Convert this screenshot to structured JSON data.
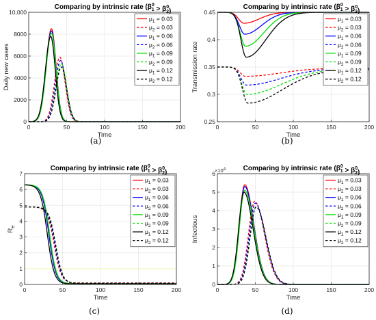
{
  "colors": {
    "red": "#ff0000",
    "blue": "#0000ff",
    "green": "#00dd00",
    "black": "#000000",
    "grid": "#e6e6e6",
    "refline": "#f5f5b0"
  },
  "legend_entries": [
    {
      "label": "μ1 = 0.03",
      "color": "red",
      "dash": false
    },
    {
      "label": "μ2 = 0.03",
      "color": "red",
      "dash": true
    },
    {
      "label": "μ1 = 0.06",
      "color": "blue",
      "dash": false
    },
    {
      "label": "μ2 = 0.06",
      "color": "blue",
      "dash": true
    },
    {
      "label": "μ1 = 0.09",
      "color": "green",
      "dash": false
    },
    {
      "label": "μ2 = 0.09",
      "color": "green",
      "dash": true
    },
    {
      "label": "μ1 = 0.12",
      "color": "black",
      "dash": false
    },
    {
      "label": "μ2 = 0.12",
      "color": "black",
      "dash": true
    }
  ],
  "chart_data": [
    {
      "id": "a",
      "caption": "(a)",
      "type": "line",
      "title": "Comparing by intrinsic rate (β1^0 > β2^0)",
      "xlabel": "Time",
      "ylabel": "Daily new cases",
      "xlim": [
        0,
        200
      ],
      "ylim": [
        0,
        10000
      ],
      "xticks": [
        "0",
        "50",
        "100",
        "150",
        "200"
      ],
      "yticks": [
        "0",
        "2000",
        "4000",
        "6000",
        "8000",
        "10,000"
      ],
      "exponent": "",
      "grid": true,
      "legend": "top-right",
      "series": [
        {
          "name": "μ1 = 0.03",
          "color": "red",
          "dash": false,
          "peak_x": 30,
          "peak_y": 8500,
          "start_y": 0,
          "end_y": 0,
          "rise": 7,
          "fall": 6
        },
        {
          "name": "μ2 = 0.03",
          "color": "red",
          "dash": true,
          "peak_x": 41,
          "peak_y": 5900,
          "start_y": 0,
          "end_y": 0,
          "rise": 7,
          "fall": 7
        },
        {
          "name": "μ1 = 0.06",
          "color": "blue",
          "dash": false,
          "peak_x": 30,
          "peak_y": 8300,
          "start_y": 0,
          "end_y": 0,
          "rise": 7,
          "fall": 6
        },
        {
          "name": "μ2 = 0.06",
          "color": "blue",
          "dash": true,
          "peak_x": 42,
          "peak_y": 5600,
          "start_y": 0,
          "end_y": 0,
          "rise": 7,
          "fall": 7
        },
        {
          "name": "μ1 = 0.09",
          "color": "green",
          "dash": false,
          "peak_x": 30,
          "peak_y": 8100,
          "start_y": 0,
          "end_y": 0,
          "rise": 7,
          "fall": 6
        },
        {
          "name": "μ2 = 0.09",
          "color": "green",
          "dash": true,
          "peak_x": 43,
          "peak_y": 5300,
          "start_y": 0,
          "end_y": 0,
          "rise": 7,
          "fall": 7
        },
        {
          "name": "μ1 = 0.12",
          "color": "black",
          "dash": false,
          "peak_x": 29,
          "peak_y": 7800,
          "start_y": 0,
          "end_y": 0,
          "rise": 7,
          "fall": 6
        },
        {
          "name": "μ2 = 0.12",
          "color": "black",
          "dash": true,
          "peak_x": 43,
          "peak_y": 5000,
          "start_y": 0,
          "end_y": 0,
          "rise": 7,
          "fall": 7
        }
      ]
    },
    {
      "id": "b",
      "caption": "(b)",
      "type": "line",
      "title": "Comparing by intrinsic rate (β1^0 > β2^0)",
      "xlabel": "Time",
      "ylabel": "Transmission rate",
      "xlim": [
        0,
        200
      ],
      "ylim": [
        0.25,
        0.45
      ],
      "xticks": [
        "0",
        "50",
        "100",
        "150",
        "200"
      ],
      "yticks": [
        "0.25",
        "0.3",
        "0.35",
        "0.4",
        "0.45"
      ],
      "exponent": "",
      "grid": true,
      "legend": "top-right",
      "series": [
        {
          "name": "μ1 = 0.03",
          "color": "red",
          "dash": false,
          "peak_x": 35,
          "peak_y": 0.43,
          "start_y": 0.45,
          "end_y": 0.45,
          "rise": 7,
          "fall": 20
        },
        {
          "name": "μ2 = 0.03",
          "color": "red",
          "dash": true,
          "peak_x": 37,
          "peak_y": 0.333,
          "start_y": 0.35,
          "end_y": 0.348,
          "rise": 7,
          "fall": 45
        },
        {
          "name": "μ1 = 0.06",
          "color": "blue",
          "dash": false,
          "peak_x": 36,
          "peak_y": 0.41,
          "start_y": 0.45,
          "end_y": 0.45,
          "rise": 7,
          "fall": 22
        },
        {
          "name": "μ2 = 0.06",
          "color": "blue",
          "dash": true,
          "peak_x": 38,
          "peak_y": 0.317,
          "start_y": 0.35,
          "end_y": 0.347,
          "rise": 7,
          "fall": 45
        },
        {
          "name": "μ1 = 0.09",
          "color": "green",
          "dash": false,
          "peak_x": 37,
          "peak_y": 0.388,
          "start_y": 0.45,
          "end_y": 0.45,
          "rise": 7,
          "fall": 24
        },
        {
          "name": "μ2 = 0.09",
          "color": "green",
          "dash": true,
          "peak_x": 39,
          "peak_y": 0.3,
          "start_y": 0.35,
          "end_y": 0.346,
          "rise": 7,
          "fall": 45
        },
        {
          "name": "μ1 = 0.12",
          "color": "black",
          "dash": false,
          "peak_x": 38,
          "peak_y": 0.368,
          "start_y": 0.45,
          "end_y": 0.45,
          "rise": 7,
          "fall": 26
        },
        {
          "name": "μ2 = 0.12",
          "color": "black",
          "dash": true,
          "peak_x": 40,
          "peak_y": 0.284,
          "start_y": 0.35,
          "end_y": 0.345,
          "rise": 7,
          "fall": 45
        }
      ]
    },
    {
      "id": "c",
      "caption": "(c)",
      "type": "line",
      "title": "Comparing by intrinsic rate (β1^0 > β2^0)",
      "xlabel": "Time",
      "ylabel": "Re",
      "xlim": [
        0,
        200
      ],
      "ylim": [
        0,
        7
      ],
      "xticks": [
        "0",
        "50",
        "100",
        "150",
        "200"
      ],
      "yticks": [
        "0",
        "1",
        "2",
        "3",
        "4",
        "5",
        "6",
        "7"
      ],
      "exponent": "",
      "grid": true,
      "legend": "top-right",
      "series": [
        {
          "name": "μ1 = 0.03",
          "color": "red",
          "dash": false,
          "start_y": 6.3,
          "end_y": 0.05,
          "mid_x": 32,
          "width": 4.5
        },
        {
          "name": "μ2 = 0.03",
          "color": "red",
          "dash": true,
          "start_y": 4.9,
          "end_y": 0.1,
          "mid_x": 39,
          "width": 4.5
        },
        {
          "name": "μ1 = 0.06",
          "color": "blue",
          "dash": false,
          "start_y": 6.3,
          "end_y": 0.04,
          "mid_x": 32,
          "width": 4.5
        },
        {
          "name": "μ2 = 0.06",
          "color": "blue",
          "dash": true,
          "start_y": 4.9,
          "end_y": 0.08,
          "mid_x": 40,
          "width": 4.5
        },
        {
          "name": "μ1 = 0.09",
          "color": "green",
          "dash": false,
          "start_y": 6.3,
          "end_y": 0.04,
          "mid_x": 33,
          "width": 4.5
        },
        {
          "name": "μ2 = 0.09",
          "color": "green",
          "dash": true,
          "start_y": 4.9,
          "end_y": 0.07,
          "mid_x": 41,
          "width": 4.5
        },
        {
          "name": "μ1 = 0.12",
          "color": "black",
          "dash": false,
          "start_y": 6.3,
          "end_y": 0.03,
          "mid_x": 30,
          "width": 4.5
        },
        {
          "name": "μ2 = 0.12",
          "color": "black",
          "dash": true,
          "start_y": 4.9,
          "end_y": 0.06,
          "mid_x": 41,
          "width": 4.5
        }
      ]
    },
    {
      "id": "d",
      "caption": "(d)",
      "type": "line",
      "title": "Comparing by intrinsic rate (β1^0 > β2^0)",
      "xlabel": "Time",
      "ylabel": "Infectious",
      "xlim": [
        0,
        200
      ],
      "ylim": [
        0,
        6
      ],
      "xticks": [
        "0",
        "50",
        "100",
        "150",
        "200"
      ],
      "yticks": [
        "0",
        "1",
        "2",
        "3",
        "4",
        "5",
        "6"
      ],
      "exponent": "×10^4",
      "grid": true,
      "legend": "top-right",
      "series": [
        {
          "name": "μ1 = 0.03",
          "color": "red",
          "dash": false,
          "peak_x": 36,
          "peak_y": 5.4,
          "start_y": 0,
          "end_y": 0,
          "rise": 7,
          "fall": 12
        },
        {
          "name": "μ2 = 0.03",
          "color": "red",
          "dash": true,
          "peak_x": 49,
          "peak_y": 4.5,
          "start_y": 0,
          "end_y": 0,
          "rise": 8,
          "fall": 13
        },
        {
          "name": "μ1 = 0.06",
          "color": "blue",
          "dash": false,
          "peak_x": 36,
          "peak_y": 5.3,
          "start_y": 0,
          "end_y": 0,
          "rise": 7,
          "fall": 12
        },
        {
          "name": "μ2 = 0.06",
          "color": "blue",
          "dash": true,
          "peak_x": 50,
          "peak_y": 4.4,
          "start_y": 0,
          "end_y": 0,
          "rise": 8,
          "fall": 13
        },
        {
          "name": "μ1 = 0.09",
          "color": "green",
          "dash": false,
          "peak_x": 36,
          "peak_y": 5.1,
          "start_y": 0,
          "end_y": 0,
          "rise": 7,
          "fall": 12
        },
        {
          "name": "μ2 = 0.09",
          "color": "green",
          "dash": true,
          "peak_x": 51,
          "peak_y": 4.2,
          "start_y": 0,
          "end_y": 0,
          "rise": 8,
          "fall": 13
        },
        {
          "name": "μ1 = 0.12",
          "color": "black",
          "dash": false,
          "peak_x": 35,
          "peak_y": 5.0,
          "start_y": 0,
          "end_y": 0,
          "rise": 7,
          "fall": 12
        },
        {
          "name": "μ2 = 0.12",
          "color": "black",
          "dash": true,
          "peak_x": 51,
          "peak_y": 4.2,
          "start_y": 0,
          "end_y": 0,
          "rise": 8,
          "fall": 13
        }
      ]
    }
  ]
}
